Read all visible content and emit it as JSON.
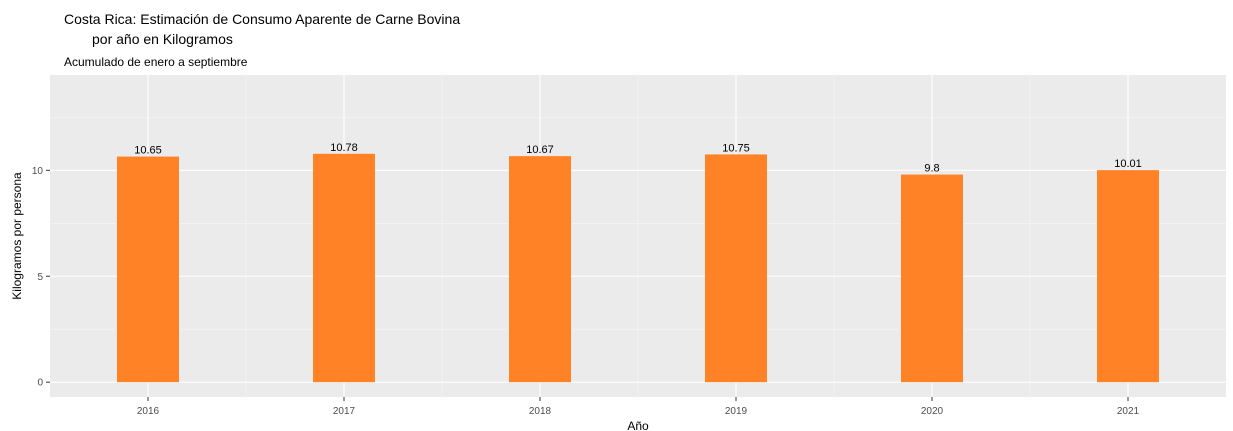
{
  "chart_data": {
    "type": "bar",
    "title_line1": "Costa Rica: Estimación de Consumo Aparente de Carne Bovina",
    "title_line2": "por año en Kilogramos",
    "subtitle": "Acumulado de enero a septiembre",
    "xlabel": "Año",
    "ylabel": "Kilogramos por persona",
    "categories": [
      "2016",
      "2017",
      "2018",
      "2019",
      "2020",
      "2021"
    ],
    "values": [
      10.65,
      10.78,
      10.67,
      10.75,
      9.8,
      10.01
    ],
    "data_labels": [
      "10.65",
      "10.78",
      "10.67",
      "10.75",
      "9.8",
      "10.01"
    ],
    "yticks": [
      "0",
      "5",
      "10"
    ],
    "ylim": [
      -0.7,
      14.5
    ],
    "bar_color": "#FF8326",
    "panel_color": "#EBEBEB",
    "grid": true,
    "legend": "none"
  }
}
